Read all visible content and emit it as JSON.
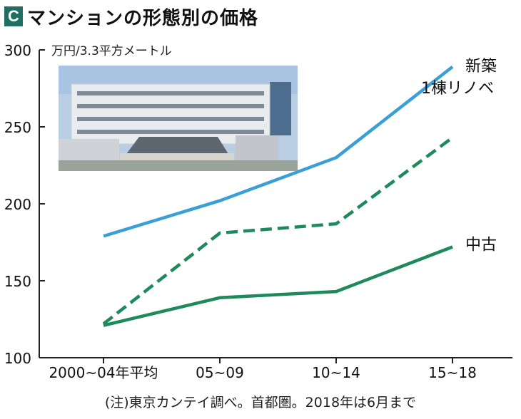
{
  "header": {
    "badge": "C",
    "title": "マンションの形態別の価格"
  },
  "footnote": "(注)東京カンテイ調べ。首都圏。2018年は6月まで",
  "colors": {
    "shinchiku": "#3a9fd6",
    "renovation": "#1e8a5c",
    "chuko": "#1e8a5c",
    "badge": "#1f6f63"
  },
  "photo_icon": "apartment-building-photo",
  "chart_data": {
    "type": "line",
    "unit": "万円/3.3平方メートル",
    "categories": [
      "2000~04年平均",
      "05~09",
      "10~14",
      "15~18"
    ],
    "ylim": [
      100,
      300
    ],
    "yticks": [
      100,
      150,
      200,
      250,
      300
    ],
    "grid": false,
    "series": [
      {
        "name": "新築",
        "values": [
          179,
          202,
          230,
          289
        ],
        "style": "solid",
        "color": "#3a9fd6"
      },
      {
        "name": "1棟リノベ",
        "values": [
          122,
          181,
          187,
          243
        ],
        "style": "dashed",
        "color": "#1e8a5c"
      },
      {
        "name": "中古",
        "values": [
          121,
          139,
          143,
          172
        ],
        "style": "solid",
        "color": "#1e8a5c"
      }
    ]
  }
}
